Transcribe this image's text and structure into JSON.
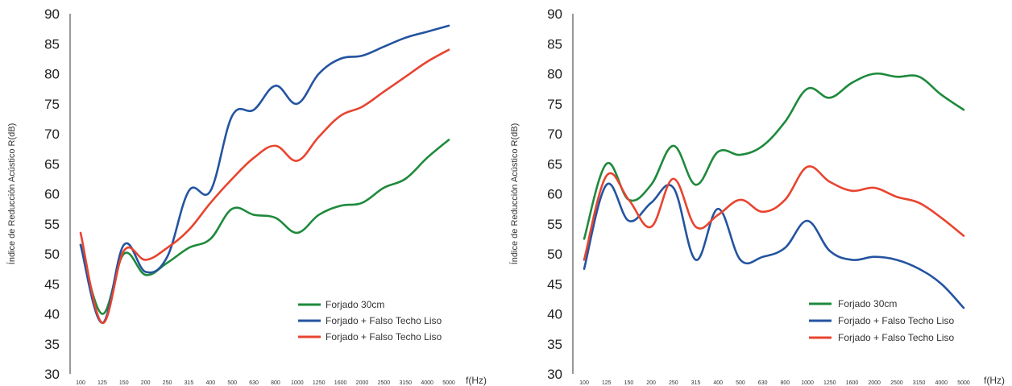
{
  "chart_data": [
    {
      "type": "line",
      "ylabel": "Índice de Reducción Acústico R(dB)",
      "xlabel": "f(Hz)",
      "ylim": [
        30,
        90
      ],
      "yticks": [
        30,
        35,
        40,
        45,
        50,
        55,
        60,
        65,
        70,
        75,
        80,
        85,
        90
      ],
      "categories": [
        "100",
        "125",
        "150",
        "200",
        "250",
        "315",
        "400",
        "500",
        "630",
        "800",
        "1000",
        "1250",
        "1600",
        "2000",
        "2500",
        "3150",
        "4000",
        "5000"
      ],
      "grid": false,
      "legend_position": "bottom-right",
      "series": [
        {
          "name": "Forjado 30cm",
          "color": "#1e8a3c",
          "values": [
            51.5,
            40.0,
            50.0,
            46.5,
            48.5,
            51.0,
            52.5,
            57.5,
            56.5,
            56.0,
            53.5,
            56.5,
            58.0,
            58.5,
            61.0,
            62.5,
            66.0,
            69.0
          ]
        },
        {
          "name": "Forjado + Falso Techo Liso",
          "color": "#2454a0",
          "values": [
            51.5,
            38.5,
            51.5,
            47.0,
            49.5,
            60.5,
            60.5,
            73.0,
            74.0,
            78.0,
            75.0,
            80.0,
            82.5,
            83.0,
            84.5,
            86.0,
            87.0,
            88.0
          ]
        },
        {
          "name": "Forjado + Falso Techo Liso",
          "color": "#e8442f",
          "values": [
            53.5,
            38.5,
            50.5,
            49.0,
            51.0,
            54.0,
            58.5,
            62.5,
            66.0,
            68.0,
            65.5,
            69.5,
            73.0,
            74.5,
            77.0,
            79.5,
            82.0,
            84.0
          ]
        }
      ]
    },
    {
      "type": "line",
      "ylabel": "Índice de Reducción Acústico R(dB)",
      "xlabel": "f(Hz)",
      "ylim": [
        30,
        90
      ],
      "yticks": [
        30,
        35,
        40,
        45,
        50,
        55,
        60,
        65,
        70,
        75,
        80,
        85,
        90
      ],
      "categories": [
        "100",
        "125",
        "150",
        "200",
        "250",
        "315",
        "400",
        "500",
        "630",
        "800",
        "1000",
        "1250",
        "1600",
        "2000",
        "2500",
        "3150",
        "4000",
        "5000"
      ],
      "grid": false,
      "legend_position": "bottom-right",
      "series": [
        {
          "name": "Forjado 30cm",
          "color": "#1e8a3c",
          "values": [
            52.5,
            65.0,
            59.0,
            61.5,
            68.0,
            61.5,
            67.0,
            66.5,
            68.0,
            72.0,
            77.5,
            76.0,
            78.5,
            80.0,
            79.5,
            79.5,
            76.5,
            74.0
          ]
        },
        {
          "name": "Forjado + Falso Techo Liso",
          "color": "#2454a0",
          "values": [
            47.5,
            61.5,
            55.5,
            58.5,
            61.0,
            49.0,
            57.5,
            49.0,
            49.5,
            51.0,
            55.5,
            50.5,
            49.0,
            49.5,
            49.0,
            47.5,
            45.0,
            41.0
          ]
        },
        {
          "name": "Forjado + Falso Techo Liso",
          "color": "#e8442f",
          "values": [
            49.0,
            63.0,
            59.0,
            54.5,
            62.5,
            54.5,
            56.5,
            59.0,
            57.0,
            59.0,
            64.5,
            62.0,
            60.5,
            61.0,
            59.5,
            58.5,
            56.0,
            53.0
          ]
        }
      ]
    }
  ]
}
